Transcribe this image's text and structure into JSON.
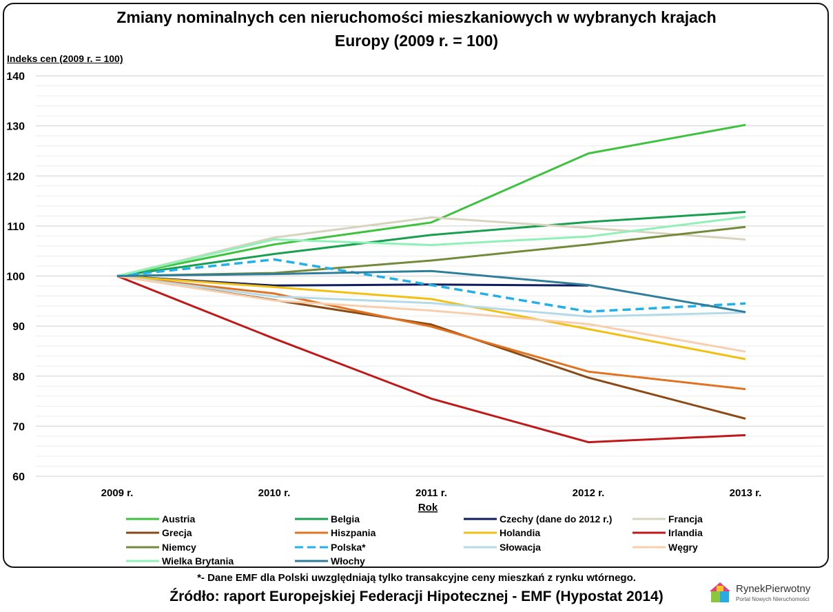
{
  "title_line1": "Zmiany nominalnych cen nieruchomości mieszkaniowych w wybranych krajach",
  "title_line2": "Europy (2009 r. = 100)",
  "footnote": "*- Dane EMF dla Polski uwzględniają tylko transakcyjne ceny mieszkań z rynku wtórnego.",
  "source": "Źródło: raport Europejskiej Federacji Hipotecznej - EMF (Hypostat 2014)",
  "logo": {
    "name": "RynekPierwotny",
    "tagline": "Portal Nowych Nieruchomości"
  },
  "chart_data": {
    "type": "line",
    "title": "Zmiany nominalnych cen nieruchomości mieszkaniowych w wybranych krajach Europy (2009 r. = 100)",
    "xlabel": "Rok",
    "ylabel": "Indeks cen (2009 r. = 100)",
    "categories": [
      "2009 r.",
      "2010 r.",
      "2011 r.",
      "2012 r.",
      "2013 r."
    ],
    "ylim": [
      60,
      140
    ],
    "yticks": [
      60,
      70,
      80,
      90,
      100,
      110,
      120,
      130,
      140
    ],
    "grid": true,
    "legend_position": "bottom",
    "series": [
      {
        "name": "Austria",
        "color": "#3cc23c",
        "dashed": false,
        "values": [
          100,
          106.3,
          110.7,
          124.5,
          130.2
        ]
      },
      {
        "name": "Belgia",
        "color": "#18a050",
        "dashed": false,
        "values": [
          100,
          104.4,
          108.2,
          110.8,
          112.8
        ]
      },
      {
        "name": "Czechy (dane do 2012 r.)",
        "color": "#0c1c5c",
        "dashed": false,
        "values": [
          100,
          98.1,
          98.3,
          98.1,
          null
        ]
      },
      {
        "name": "Francja",
        "color": "#d8d3bf",
        "dashed": false,
        "values": [
          100,
          107.7,
          111.7,
          109.6,
          107.3
        ]
      },
      {
        "name": "Grecja",
        "color": "#8b4a14",
        "dashed": false,
        "values": [
          100,
          95.2,
          90.3,
          79.7,
          71.5
        ]
      },
      {
        "name": "Hiszpania",
        "color": "#e07322",
        "dashed": false,
        "values": [
          100,
          96.5,
          89.9,
          80.9,
          77.4
        ]
      },
      {
        "name": "Holandia",
        "color": "#f2c012",
        "dashed": false,
        "values": [
          100,
          97.8,
          95.4,
          89.4,
          83.4
        ]
      },
      {
        "name": "Irlandia",
        "color": "#c01818",
        "dashed": false,
        "values": [
          100,
          87.5,
          75.5,
          66.8,
          68.2
        ]
      },
      {
        "name": "Niemcy",
        "color": "#738a3a",
        "dashed": false,
        "values": [
          100,
          100.6,
          103.1,
          106.3,
          109.8
        ]
      },
      {
        "name": "Polska*",
        "color": "#22b0e8",
        "dashed": true,
        "values": [
          100,
          103.3,
          98.2,
          92.9,
          94.5
        ]
      },
      {
        "name": "Słowacja",
        "color": "#b3dae6",
        "dashed": false,
        "values": [
          100,
          95.9,
          94.6,
          91.9,
          92.7
        ]
      },
      {
        "name": "Węgry",
        "color": "#f7cfae",
        "dashed": false,
        "values": [
          100,
          95.1,
          93.1,
          90.4,
          84.9
        ]
      },
      {
        "name": "Wielka Brytania",
        "color": "#8ff0b8",
        "dashed": false,
        "values": [
          100,
          107.3,
          106.2,
          107.9,
          111.8
        ]
      },
      {
        "name": "Włochy",
        "color": "#2e7d9a",
        "dashed": false,
        "values": [
          100,
          100.4,
          101.0,
          98.2,
          92.8
        ]
      }
    ]
  }
}
